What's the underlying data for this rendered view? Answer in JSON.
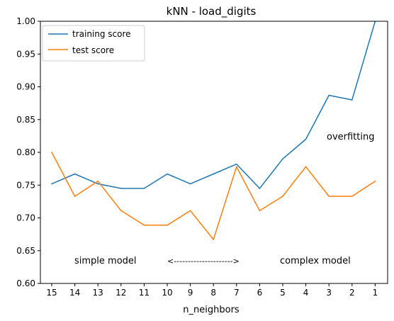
{
  "chart_data": {
    "type": "line",
    "title": "kNN - load_digits",
    "xlabel": "n_neighbors",
    "ylabel": "",
    "x": [
      "15",
      "14",
      "13",
      "12",
      "11",
      "10",
      "9",
      "8",
      "7",
      "6",
      "5",
      "4",
      "3",
      "2",
      "1"
    ],
    "series": [
      {
        "name": "training score",
        "color": "#1f77b4",
        "values": [
          0.752,
          0.767,
          0.752,
          0.745,
          0.745,
          0.767,
          0.752,
          0.767,
          0.782,
          0.745,
          0.79,
          0.82,
          0.887,
          0.88,
          1.0
        ]
      },
      {
        "name": "test score",
        "color": "#ff7f0e",
        "values": [
          0.8,
          0.733,
          0.756,
          0.711,
          0.689,
          0.689,
          0.711,
          0.667,
          0.778,
          0.711,
          0.733,
          0.778,
          0.733,
          0.733,
          0.756
        ]
      }
    ],
    "ylim": [
      0.6,
      1.0
    ],
    "yticks": [
      "0.60",
      "0.65",
      "0.70",
      "0.75",
      "0.80",
      "0.85",
      "0.90",
      "0.95",
      "1.00"
    ],
    "grid": false,
    "legend_position": "top-left",
    "annotations": {
      "overfitting": "overfitting",
      "simple_model": "simple model",
      "arrow": "<--------------------->",
      "complex_model": "complex model"
    }
  }
}
